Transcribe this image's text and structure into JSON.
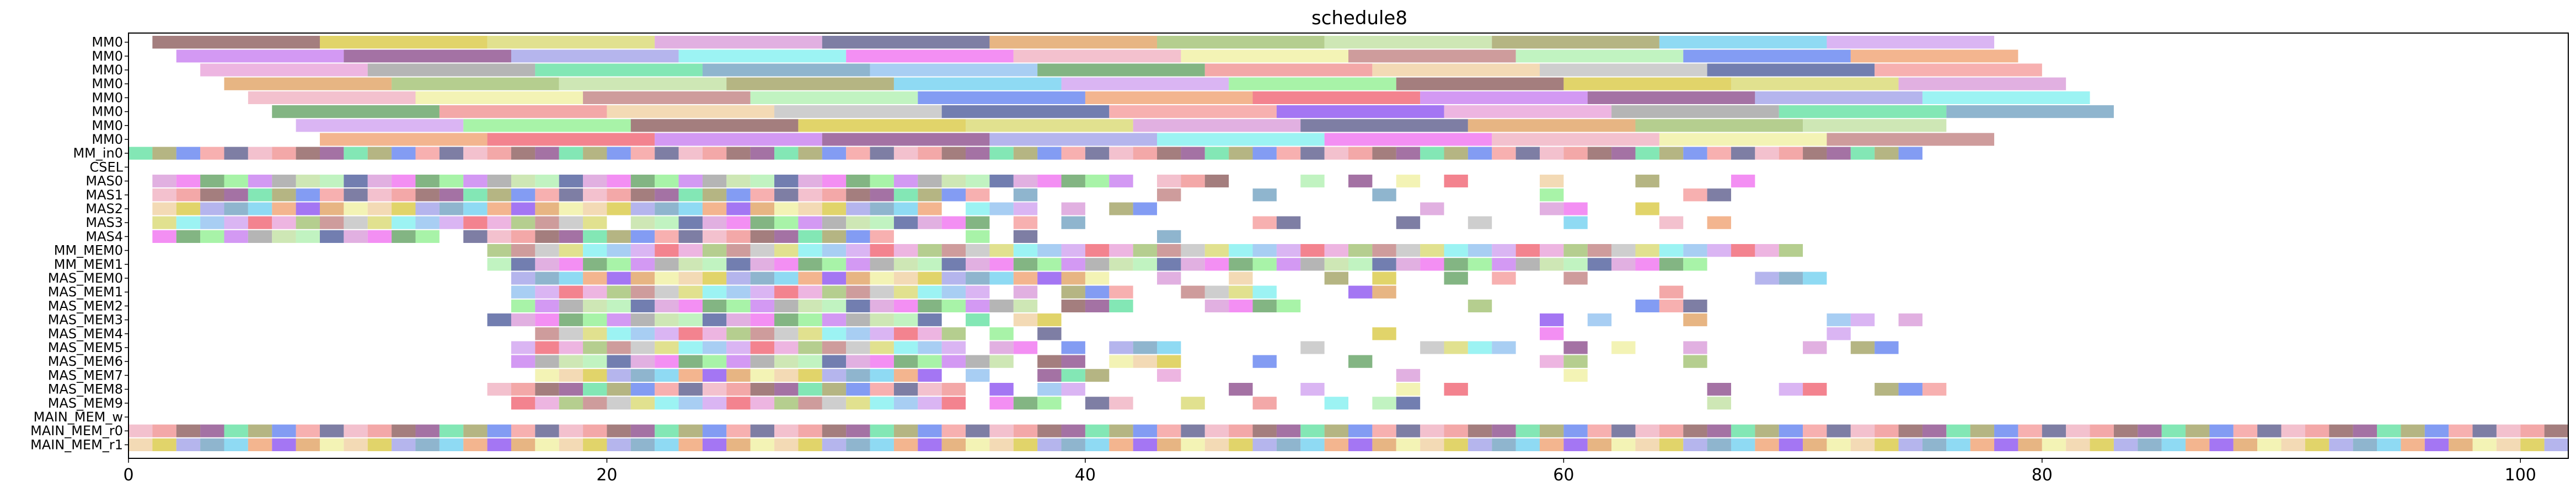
{
  "chart_data": {
    "type": "gantt",
    "title": "schedule8",
    "xlabel": "",
    "ylabel": "",
    "xlim": [
      0,
      102
    ],
    "xticks": [
      0,
      20,
      40,
      60,
      80,
      100
    ],
    "grid": false,
    "rows": [
      "MM0",
      "MM0",
      "MM0",
      "MM0",
      "MM0",
      "MM0",
      "MM0",
      "MM0",
      "MM_in0",
      "CSEL",
      "MAS0",
      "MAS1",
      "MAS2",
      "MAS3",
      "MAS4",
      "MM_MEM0",
      "MM_MEM1",
      "MAS_MEM0",
      "MAS_MEM1",
      "MAS_MEM2",
      "MAS_MEM3",
      "MAS_MEM4",
      "MAS_MEM5",
      "MAS_MEM6",
      "MAS_MEM7",
      "MAS_MEM8",
      "MAS_MEM9",
      "MAIN_MEM_w",
      "MAIN_MEM_r0",
      "MAIN_MEM_r1"
    ],
    "palette": [
      "#8b5a5a",
      "#4a5a9a",
      "#f06070",
      "#d8c840",
      "#f59a9a",
      "#c77cf0",
      "#d8d870",
      "#8a50f0",
      "#8a4a8a",
      "#d89ad8",
      "#e8a0d8",
      "#a0a0e8",
      "#5a5a8a",
      "#a0a0a0",
      "#80f0f0",
      "#e0a060",
      "#60e0a0",
      "#f070f0",
      "#a0c070",
      "#70a0c0",
      "#f0b0c0",
      "#c0e0a0",
      "#90c0f0",
      "#f0f0a0",
      "#a0a060",
      "#60a060",
      "#c08080",
      "#70d0f0",
      "#f09090",
      "#b0f0b0",
      "#d0a0f0",
      "#f0d0a0",
      "#6080f0",
      "#90f090",
      "#c0c0c0",
      "#f0a070"
    ],
    "mm_segments": [
      [
        [
          1,
          8
        ],
        [
          8,
          15
        ],
        [
          15,
          22
        ],
        [
          22,
          29
        ],
        [
          29,
          36
        ],
        [
          36,
          43
        ],
        [
          43,
          50
        ],
        [
          50,
          57
        ],
        [
          57,
          64
        ],
        [
          64,
          71
        ],
        [
          71,
          78
        ]
      ],
      [
        [
          2,
          9
        ],
        [
          9,
          16
        ],
        [
          16,
          23
        ],
        [
          23,
          30
        ],
        [
          30,
          37
        ],
        [
          37,
          44
        ],
        [
          44,
          51
        ],
        [
          51,
          58
        ],
        [
          58,
          65
        ],
        [
          65,
          72
        ],
        [
          72,
          79
        ]
      ],
      [
        [
          3,
          10
        ],
        [
          10,
          17
        ],
        [
          17,
          24
        ],
        [
          24,
          31
        ],
        [
          31,
          38
        ],
        [
          38,
          45
        ],
        [
          45,
          52
        ],
        [
          52,
          59
        ],
        [
          59,
          66
        ],
        [
          66,
          73
        ],
        [
          73,
          80
        ]
      ],
      [
        [
          4,
          11
        ],
        [
          11,
          18
        ],
        [
          18,
          25
        ],
        [
          25,
          32
        ],
        [
          32,
          39
        ],
        [
          39,
          46
        ],
        [
          46,
          53
        ],
        [
          53,
          60
        ],
        [
          60,
          67
        ],
        [
          67,
          74
        ],
        [
          74,
          81
        ]
      ],
      [
        [
          5,
          12
        ],
        [
          12,
          19
        ],
        [
          19,
          26
        ],
        [
          26,
          33
        ],
        [
          33,
          40
        ],
        [
          40,
          47
        ],
        [
          47,
          54
        ],
        [
          54,
          61
        ],
        [
          61,
          68
        ],
        [
          68,
          75
        ],
        [
          75,
          82
        ]
      ],
      [
        [
          6,
          13
        ],
        [
          13,
          20
        ],
        [
          20,
          27
        ],
        [
          27,
          34
        ],
        [
          34,
          41
        ],
        [
          41,
          48
        ],
        [
          48,
          55
        ],
        [
          55,
          62
        ],
        [
          62,
          69
        ],
        [
          69,
          76
        ],
        [
          76,
          83
        ]
      ],
      [
        [
          7,
          14
        ],
        [
          14,
          21
        ],
        [
          21,
          28
        ],
        [
          28,
          35
        ],
        [
          35,
          42
        ],
        [
          42,
          49
        ],
        [
          49,
          56
        ],
        [
          56,
          63
        ],
        [
          63,
          70
        ],
        [
          70,
          76
        ]
      ],
      [
        [
          8,
          15
        ],
        [
          15,
          22
        ],
        [
          22,
          29
        ],
        [
          29,
          36
        ],
        [
          36,
          43
        ],
        [
          43,
          50
        ],
        [
          50,
          57
        ],
        [
          57,
          64
        ],
        [
          64,
          71
        ],
        [
          71,
          78
        ]
      ]
    ],
    "unit_rows": {
      "MM_in0": [
        [
          0,
          75
        ]
      ],
      "MAS0": [
        [
          1,
          35
        ],
        [
          35,
          38
        ],
        [
          38,
          42
        ],
        [
          43,
          46
        ],
        [
          49,
          50
        ],
        [
          51,
          52
        ],
        [
          53,
          54
        ],
        [
          55,
          56
        ],
        [
          59,
          60
        ],
        [
          63,
          64
        ],
        [
          67,
          68
        ]
      ],
      "MAS1": [
        [
          1,
          36
        ],
        [
          37,
          38
        ],
        [
          43,
          44
        ],
        [
          47,
          48
        ],
        [
          52,
          53
        ],
        [
          59,
          60
        ],
        [
          65,
          67
        ]
      ],
      "MAS2": [
        [
          1,
          34
        ],
        [
          35,
          38
        ],
        [
          39,
          40
        ],
        [
          41,
          43
        ],
        [
          54,
          55
        ],
        [
          59,
          61
        ],
        [
          63,
          64
        ]
      ],
      "MAS3": [
        [
          1,
          20
        ],
        [
          21,
          36
        ],
        [
          37,
          38
        ],
        [
          39,
          40
        ],
        [
          47,
          49
        ],
        [
          53,
          54
        ],
        [
          56,
          57
        ],
        [
          60,
          61
        ],
        [
          64,
          65
        ],
        [
          66,
          67
        ]
      ],
      "MAS4": [
        [
          1,
          13
        ],
        [
          14,
          32
        ],
        [
          35,
          36
        ],
        [
          37,
          38
        ],
        [
          43,
          44
        ]
      ],
      "MM_MEM0": [
        [
          15,
          70
        ]
      ],
      "MM_MEM1": [
        [
          15,
          66
        ]
      ],
      "MAS_MEM0": [
        [
          16,
          41
        ],
        [
          43,
          44
        ],
        [
          46,
          47
        ],
        [
          50,
          51
        ],
        [
          52,
          53
        ],
        [
          55,
          56
        ],
        [
          57,
          58
        ],
        [
          60,
          61
        ],
        [
          68,
          71
        ]
      ],
      "MAS_MEM1": [
        [
          16,
          36
        ],
        [
          37,
          38
        ],
        [
          39,
          42
        ],
        [
          44,
          48
        ],
        [
          51,
          53
        ],
        [
          64,
          65
        ]
      ],
      "MAS_MEM2": [
        [
          16,
          38
        ],
        [
          39,
          42
        ],
        [
          45,
          49
        ],
        [
          56,
          57
        ],
        [
          63,
          66
        ]
      ],
      "MAS_MEM3": [
        [
          15,
          34
        ],
        [
          35,
          36
        ],
        [
          37,
          38
        ],
        [
          38,
          39
        ],
        [
          59,
          60
        ],
        [
          61,
          62
        ],
        [
          65,
          66
        ],
        [
          71,
          73
        ],
        [
          74,
          75
        ]
      ],
      "MAS_MEM4": [
        [
          17,
          35
        ],
        [
          36,
          37
        ],
        [
          38,
          39
        ],
        [
          52,
          53
        ],
        [
          59,
          60
        ],
        [
          71,
          72
        ]
      ],
      "MAS_MEM5": [
        [
          16,
          35
        ],
        [
          36,
          38
        ],
        [
          39,
          40
        ],
        [
          41,
          44
        ],
        [
          49,
          50
        ],
        [
          54,
          58
        ],
        [
          60,
          61
        ],
        [
          62,
          63
        ],
        [
          65,
          66
        ],
        [
          70,
          71
        ],
        [
          72,
          74
        ]
      ],
      "MAS_MEM6": [
        [
          16,
          37
        ],
        [
          38,
          40
        ],
        [
          41,
          44
        ],
        [
          47,
          48
        ],
        [
          51,
          52
        ],
        [
          59,
          60
        ],
        [
          60,
          61
        ],
        [
          65,
          66
        ]
      ],
      "MAS_MEM7": [
        [
          17,
          34
        ],
        [
          35,
          36
        ],
        [
          38,
          41
        ],
        [
          43,
          44
        ],
        [
          53,
          54
        ],
        [
          60,
          61
        ]
      ],
      "MAS_MEM8": [
        [
          15,
          35
        ],
        [
          36,
          37
        ],
        [
          38,
          40
        ],
        [
          46,
          47
        ],
        [
          49,
          50
        ],
        [
          53,
          54
        ],
        [
          55,
          56
        ],
        [
          66,
          67
        ],
        [
          69,
          71
        ],
        [
          73,
          76
        ]
      ],
      "MAS_MEM9": [
        [
          16,
          35
        ],
        [
          36,
          39
        ],
        [
          40,
          42
        ],
        [
          44,
          45
        ],
        [
          47,
          48
        ],
        [
          50,
          51
        ],
        [
          52,
          54
        ],
        [
          66,
          67
        ]
      ],
      "MAIN_MEM_r0": [
        [
          0,
          102
        ]
      ],
      "MAIN_MEM_r1": [
        [
          0,
          102
        ]
      ]
    }
  }
}
